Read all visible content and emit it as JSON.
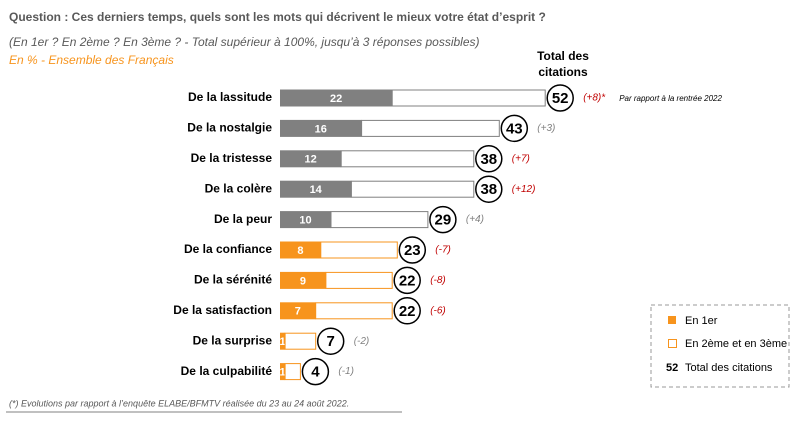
{
  "chart_data": {
    "type": "stacked-hbar",
    "title": "Question : Ces derniers temps, quels sont les mots qui décrivent le mieux votre état d’esprit ?",
    "subtitle": "(En 1er ? En 2ème ? En 3ème ? - Total supérieur à 100%, jusqu’à 3 réponses possibles)",
    "population": "En % - Ensemble des Français",
    "total_header": [
      "Total des",
      "citations"
    ],
    "categories": [
      "De la lassitude",
      "De la nostalgie",
      "De la tristesse",
      "De la colère",
      "De la peur",
      "De la confiance",
      "De la sérénité",
      "De la satisfaction",
      "De la surprise",
      "De la culpabilité"
    ],
    "colors": [
      "#808080",
      "#808080",
      "#808080",
      "#808080",
      "#808080",
      "#f7941d",
      "#f7941d",
      "#f7941d",
      "#f7941d",
      "#f7941d"
    ],
    "series": [
      {
        "name": "En 1er",
        "values": [
          22,
          16,
          12,
          14,
          10,
          8,
          9,
          7,
          1,
          1
        ]
      },
      {
        "name": "En 2ème et en 3ème",
        "values": [
          30,
          27,
          26,
          24,
          19,
          15,
          13,
          15,
          6,
          3
        ]
      }
    ],
    "totals": [
      52,
      43,
      38,
      38,
      29,
      23,
      22,
      22,
      7,
      4
    ],
    "changes": [
      "(+8)*",
      "(+3)",
      "(+7)",
      "(+12)",
      "(+4)",
      "(-7)",
      "(-8)",
      "(-6)",
      "(-2)",
      "(-1)"
    ],
    "change_colors": [
      "#c00000",
      "#808080",
      "#c00000",
      "#c00000",
      "#808080",
      "#c00000",
      "#c00000",
      "#c00000",
      "#808080",
      "#808080"
    ],
    "change_note": "Par rapport à la rentrée 2022",
    "legend": {
      "total_sample": "52",
      "total_label": "Total des citations"
    },
    "footnote": "(*) Evolutions par rapport à l’enquête ELABE/BFMTV réalisée du 23 au 24 août 2022."
  }
}
